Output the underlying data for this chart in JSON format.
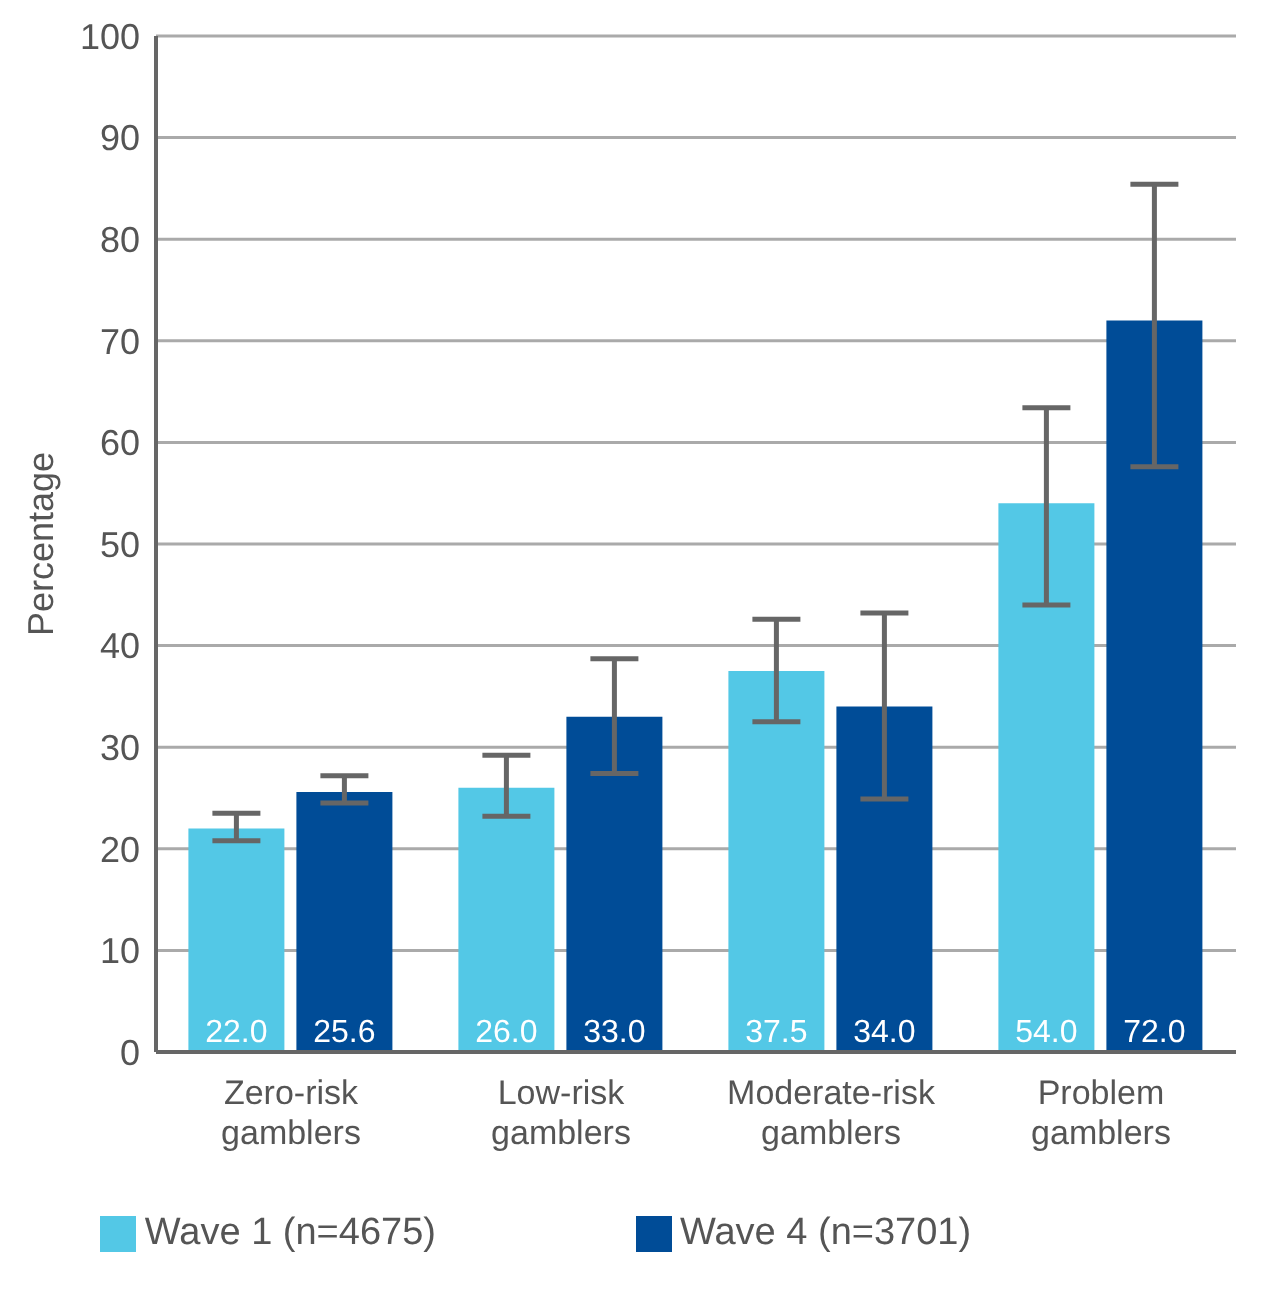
{
  "chart_data": {
    "type": "bar",
    "ylabel": "Percentage",
    "categories": [
      "Zero-risk gamblers",
      "Low-risk gamblers",
      "Moderate-risk gamblers",
      "Problem gamblers"
    ],
    "series": [
      {
        "name": "Wave 1 (n=4675)",
        "color": "#53c8e6",
        "values": [
          22.0,
          26.0,
          37.5,
          54.0
        ],
        "value_labels": [
          "22.0",
          "26.0",
          "37.5",
          "54.0"
        ],
        "errors": [
          [
            20.8,
            23.5
          ],
          [
            23.2,
            29.2
          ],
          [
            32.5,
            42.6
          ],
          [
            44.0,
            63.4
          ]
        ]
      },
      {
        "name": "Wave 4 (n=3701)",
        "color": "#004c97",
        "values": [
          25.6,
          33.0,
          34.0,
          72.0
        ],
        "value_labels": [
          "25.6",
          "33.0",
          "34.0",
          "72.0"
        ],
        "errors": [
          [
            24.5,
            27.2
          ],
          [
            27.4,
            38.7
          ],
          [
            24.9,
            43.2
          ],
          [
            57.6,
            85.4
          ]
        ]
      }
    ],
    "ylim": [
      0,
      100
    ],
    "yticks": [
      0,
      10,
      20,
      30,
      40,
      50,
      60,
      70,
      80,
      90,
      100
    ],
    "grid": "y",
    "legend": "bottom"
  }
}
